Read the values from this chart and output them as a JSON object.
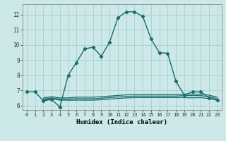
{
  "xlabel": "Humidex (Indice chaleur)",
  "bg_color": "#cce8e8",
  "grid_color": "#aacece",
  "line_color": "#1a6b6b",
  "xlim": [
    -0.5,
    23.5
  ],
  "ylim": [
    5.7,
    12.7
  ],
  "yticks": [
    6,
    7,
    8,
    9,
    10,
    11,
    12
  ],
  "xticks": [
    0,
    1,
    2,
    3,
    4,
    5,
    6,
    7,
    8,
    9,
    10,
    11,
    12,
    13,
    14,
    15,
    16,
    17,
    18,
    19,
    20,
    21,
    22,
    23
  ],
  "main_line_x": [
    0,
    1,
    2,
    3,
    4,
    5,
    6,
    7,
    8,
    9,
    10,
    11,
    12,
    13,
    14,
    15,
    16,
    17,
    18,
    19,
    20,
    21,
    22,
    23
  ],
  "main_line_y": [
    6.9,
    6.9,
    6.3,
    6.4,
    5.9,
    8.0,
    8.85,
    9.75,
    9.85,
    9.25,
    10.2,
    11.8,
    12.2,
    12.2,
    11.9,
    10.4,
    9.5,
    9.45,
    7.6,
    6.7,
    6.9,
    6.9,
    6.5,
    6.35
  ],
  "flat_line1_x": [
    2,
    3,
    4,
    5,
    6,
    7,
    8,
    9,
    10,
    11,
    12,
    13,
    14,
    15,
    16,
    17,
    18,
    19,
    20,
    21,
    22,
    23
  ],
  "flat_line1_y": [
    6.35,
    6.45,
    6.35,
    6.35,
    6.35,
    6.35,
    6.35,
    6.38,
    6.42,
    6.46,
    6.5,
    6.52,
    6.52,
    6.52,
    6.52,
    6.52,
    6.52,
    6.52,
    6.5,
    6.52,
    6.45,
    6.35
  ],
  "flat_line2_x": [
    2,
    3,
    4,
    5,
    6,
    7,
    8,
    9,
    10,
    11,
    12,
    13,
    14,
    15,
    16,
    17,
    18,
    19,
    20,
    21,
    22,
    23
  ],
  "flat_line2_y": [
    6.42,
    6.5,
    6.42,
    6.42,
    6.45,
    6.45,
    6.45,
    6.48,
    6.52,
    6.56,
    6.6,
    6.62,
    6.62,
    6.62,
    6.62,
    6.62,
    6.62,
    6.65,
    6.65,
    6.65,
    6.58,
    6.45
  ],
  "flat_line3_x": [
    2,
    3,
    4,
    5,
    6,
    7,
    8,
    9,
    10,
    11,
    12,
    13,
    14,
    15,
    16,
    17,
    18,
    19,
    20,
    21,
    22,
    23
  ],
  "flat_line3_y": [
    6.5,
    6.58,
    6.5,
    6.5,
    6.55,
    6.55,
    6.55,
    6.58,
    6.62,
    6.66,
    6.7,
    6.72,
    6.72,
    6.72,
    6.72,
    6.72,
    6.72,
    6.75,
    6.75,
    6.75,
    6.68,
    6.55
  ]
}
